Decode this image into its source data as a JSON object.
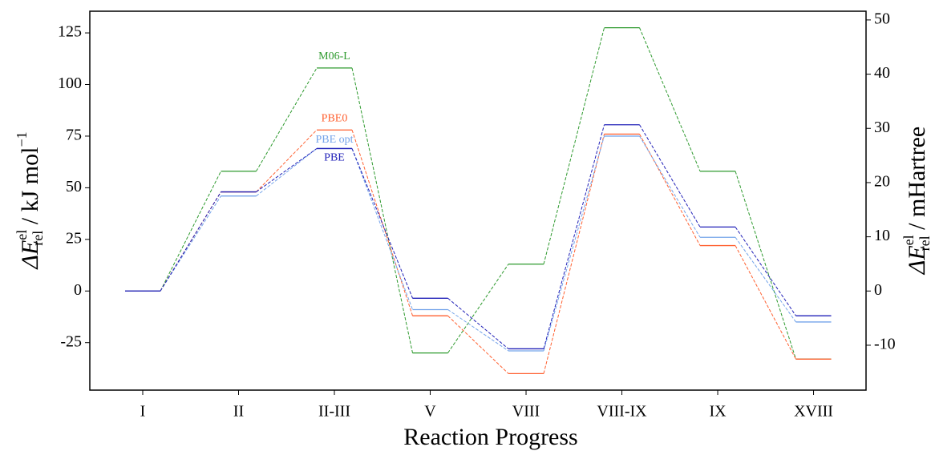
{
  "chart_data": {
    "type": "line",
    "ylabel": {
      "symbol": "ΔE",
      "sup": "el",
      "sub": "rel",
      "unit": " / kJ mol",
      "unit_sup": "−1"
    },
    "y2label": {
      "symbol": "ΔE",
      "sup": "el",
      "sub": "rel",
      "unit": " / mHartree"
    },
    "xlabel": "Reaction Progress",
    "categories": [
      "I",
      "II",
      "II-III",
      "V",
      "VIII",
      "VIII-IX",
      "IX",
      "XVIII"
    ],
    "series": [
      {
        "name": "M06-L",
        "color": "#2e9a2e",
        "values": [
          0,
          58,
          108,
          -30,
          13,
          127.5,
          58,
          -33
        ]
      },
      {
        "name": "PBE0",
        "color": "#ff6030",
        "values": [
          0,
          48,
          78,
          -12,
          -40,
          76,
          22,
          -33
        ]
      },
      {
        "name": "PBE opt",
        "color": "#74a4ea",
        "values": [
          0,
          46,
          69,
          -9,
          -29,
          75,
          26,
          -15
        ]
      },
      {
        "name": "PBE",
        "color": "#2020b8",
        "values": [
          0,
          48,
          69,
          -3.5,
          -28,
          80.5,
          31,
          -12
        ]
      }
    ],
    "ylim": [
      -48,
      135.5
    ],
    "yticks": [
      -25,
      0,
      25,
      50,
      75,
      100,
      125
    ],
    "y2lim": [
      -18.28,
      51.61
    ],
    "y2ticks": [
      -10,
      0,
      10,
      20,
      30,
      40,
      50
    ]
  }
}
